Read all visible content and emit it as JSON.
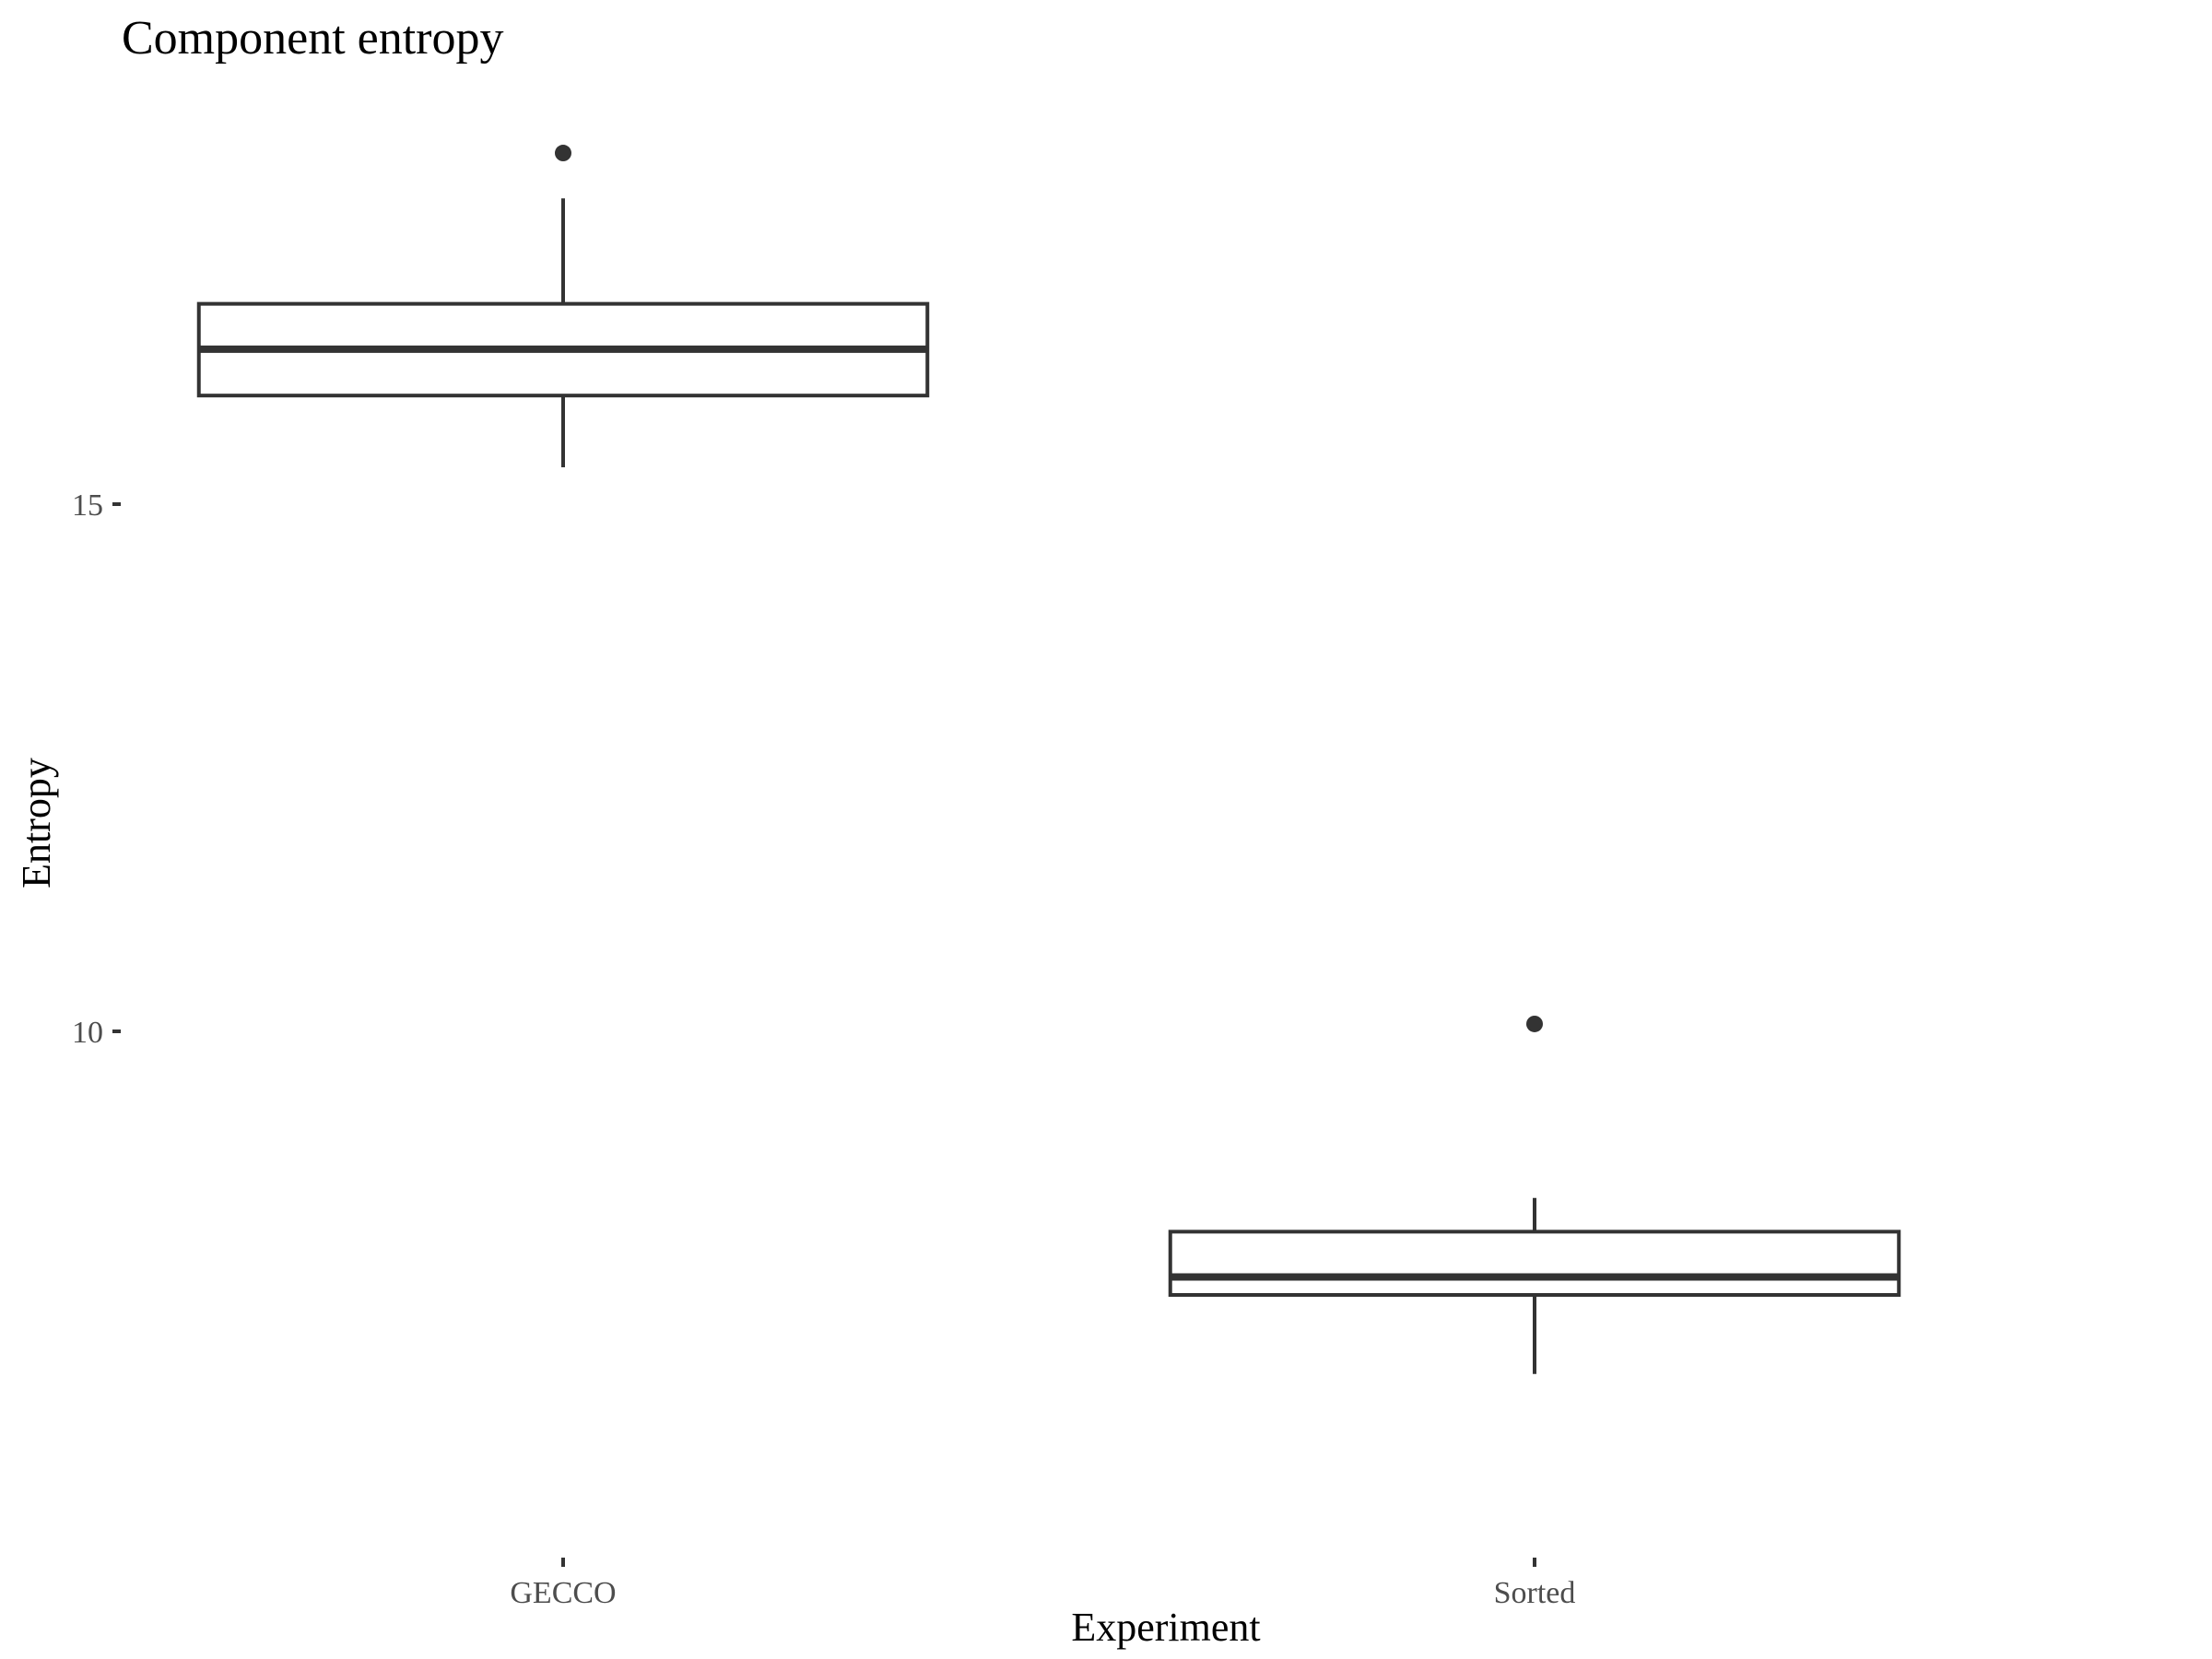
{
  "chart_data": {
    "type": "boxplot",
    "title": "Component entropy",
    "xlabel": "Experiment",
    "ylabel": "Entropy",
    "categories": [
      "GECCO",
      "Sorted"
    ],
    "y_ticks": [
      10,
      15
    ],
    "ylim": [
      5,
      18.6
    ],
    "grid": false,
    "legend": "none",
    "series": [
      {
        "category": "GECCO",
        "whisker_low": 15.35,
        "q1": 16.03,
        "median": 16.47,
        "q3": 16.9,
        "whisker_high": 17.9,
        "outliers": [
          18.33
        ]
      },
      {
        "category": "Sorted",
        "whisker_low": 6.75,
        "q1": 7.5,
        "median": 7.67,
        "q3": 8.1,
        "whisker_high": 8.42,
        "outliers": [
          10.07
        ]
      }
    ],
    "colors": {
      "line": "#333333",
      "tick_label": "#4d4d4d",
      "title": "#000000"
    }
  }
}
